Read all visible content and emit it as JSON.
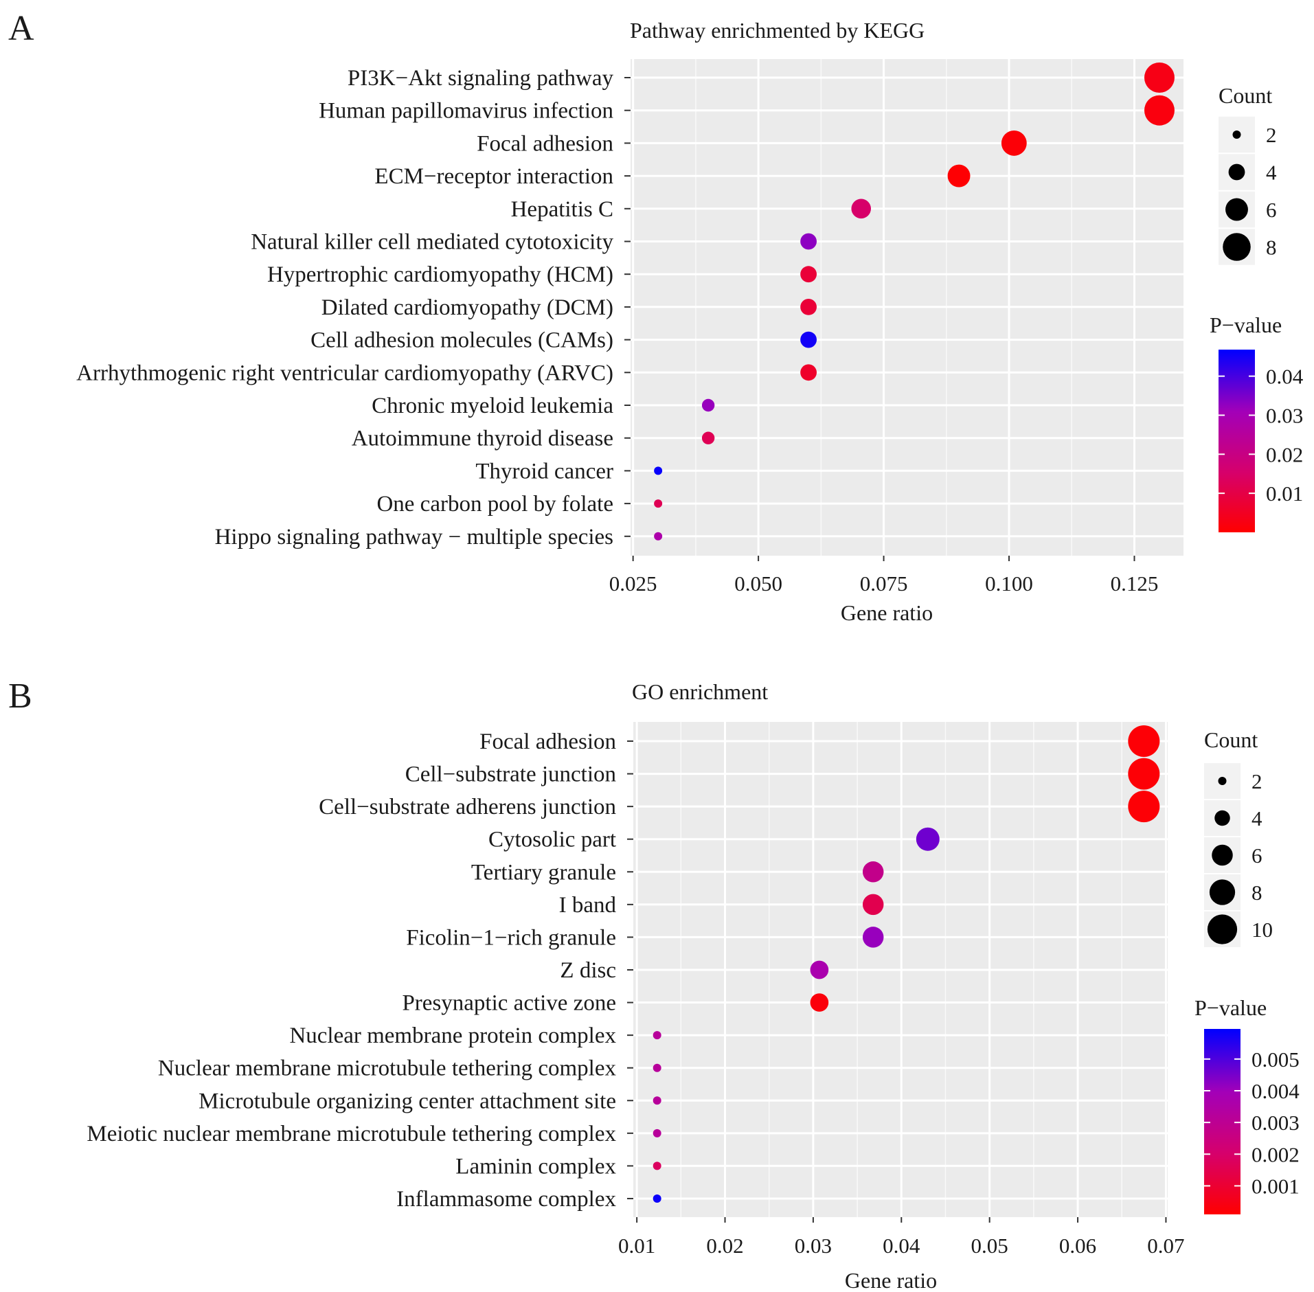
{
  "colors": {
    "low": "#FF0000",
    "high": "#0000FF",
    "panel_bg": "#EBEBEB",
    "grid": "#FFFFFF"
  },
  "chart_data": [
    {
      "panel_letter": "A",
      "type": "scatter",
      "title": "Pathway enrichmented by KEGG",
      "xlabel": "Gene ratio",
      "ylabel": "",
      "xlim": [
        0.0245,
        0.1348
      ],
      "xticks": [
        0.025,
        0.05,
        0.075,
        0.1,
        0.125
      ],
      "xtick_labels": [
        "0.025",
        "0.050",
        "0.075",
        "0.100",
        "0.125"
      ],
      "grid": true,
      "categories": [
        "PI3K−Akt signaling pathway",
        "Human papillomavirus infection",
        "Focal adhesion",
        "ECM−receptor interaction",
        "Hepatitis C",
        "Natural killer cell mediated cytotoxicity",
        "Hypertrophic cardiomyopathy (HCM)",
        "Dilated cardiomyopathy (DCM)",
        "Cell adhesion molecules (CAMs)",
        "Arrhythmogenic right ventricular cardiomyopathy (ARVC)",
        "Chronic myeloid leukemia",
        "Autoimmune thyroid disease",
        "Thyroid cancer",
        "One carbon pool by folate",
        "Hippo signaling pathway − multiple species"
      ],
      "gene_ratio": [
        0.13,
        0.13,
        0.101,
        0.09,
        0.0705,
        0.06,
        0.06,
        0.06,
        0.06,
        0.06,
        0.04,
        0.04,
        0.03,
        0.03,
        0.03
      ],
      "count": [
        9,
        9,
        7,
        6,
        5,
        4,
        4,
        4,
        4,
        4,
        3,
        3,
        2,
        2,
        2
      ],
      "p_value": [
        0.003,
        0.002,
        0.001,
        0.0005,
        0.015,
        0.033,
        0.008,
        0.008,
        0.045,
        0.006,
        0.032,
        0.012,
        0.046,
        0.012,
        0.028
      ],
      "size_legend": {
        "title": "Count",
        "values": [
          2,
          4,
          6,
          8
        ],
        "labels": [
          "2",
          "4",
          "6",
          "8"
        ]
      },
      "color_legend": {
        "title": "P−value",
        "range": [
          0.0,
          0.0468
        ],
        "ticks": [
          0.04,
          0.03,
          0.02,
          0.01
        ],
        "labels": [
          "0.04",
          "0.03",
          "0.02",
          "0.01"
        ]
      },
      "legend_position": "right"
    },
    {
      "panel_letter": "B",
      "type": "scatter",
      "title": "GO enrichment",
      "xlabel": "Gene ratio",
      "ylabel": "",
      "xlim": [
        0.0096,
        0.0702
      ],
      "xticks": [
        0.01,
        0.02,
        0.03,
        0.04,
        0.05,
        0.06,
        0.07
      ],
      "xtick_labels": [
        "0.01",
        "0.02",
        "0.03",
        "0.04",
        "0.05",
        "0.06",
        "0.07"
      ],
      "grid": true,
      "categories": [
        "Focal adhesion",
        "Cell−substrate junction",
        "Cell−substrate adherens junction",
        "Cytosolic part",
        "Tertiary granule",
        "I band",
        "Ficolin−1−rich granule",
        "Z disc",
        "Presynaptic active zone",
        "Nuclear membrane protein complex",
        "Nuclear membrane microtubule tethering complex",
        "Microtubule organizing center attachment site",
        "Meiotic nuclear membrane microtubule tethering complex",
        "Laminin complex",
        "Inflammasome complex"
      ],
      "gene_ratio": [
        0.0675,
        0.0675,
        0.0675,
        0.043,
        0.0368,
        0.0368,
        0.0368,
        0.0307,
        0.0307,
        0.0123,
        0.0123,
        0.0123,
        0.0123,
        0.0123,
        0.0123
      ],
      "count": [
        11,
        11,
        11,
        7,
        6,
        6,
        6,
        5,
        5,
        2,
        2,
        2,
        2,
        2,
        2
      ],
      "p_value": [
        0.0002,
        0.0002,
        0.0002,
        0.0046,
        0.0028,
        0.0015,
        0.0041,
        0.0037,
        0.0003,
        0.0032,
        0.0032,
        0.0032,
        0.0032,
        0.0018,
        0.0058
      ],
      "size_legend": {
        "title": "Count",
        "values": [
          2,
          4,
          6,
          8,
          10
        ],
        "labels": [
          "2",
          "4",
          "6",
          "8",
          "10"
        ]
      },
      "color_legend": {
        "title": "P−value",
        "range": [
          0.0001,
          0.00595
        ],
        "ticks": [
          0.005,
          0.004,
          0.003,
          0.002,
          0.001
        ],
        "labels": [
          "0.005",
          "0.004",
          "0.003",
          "0.002",
          "0.001"
        ]
      },
      "legend_position": "right"
    }
  ]
}
